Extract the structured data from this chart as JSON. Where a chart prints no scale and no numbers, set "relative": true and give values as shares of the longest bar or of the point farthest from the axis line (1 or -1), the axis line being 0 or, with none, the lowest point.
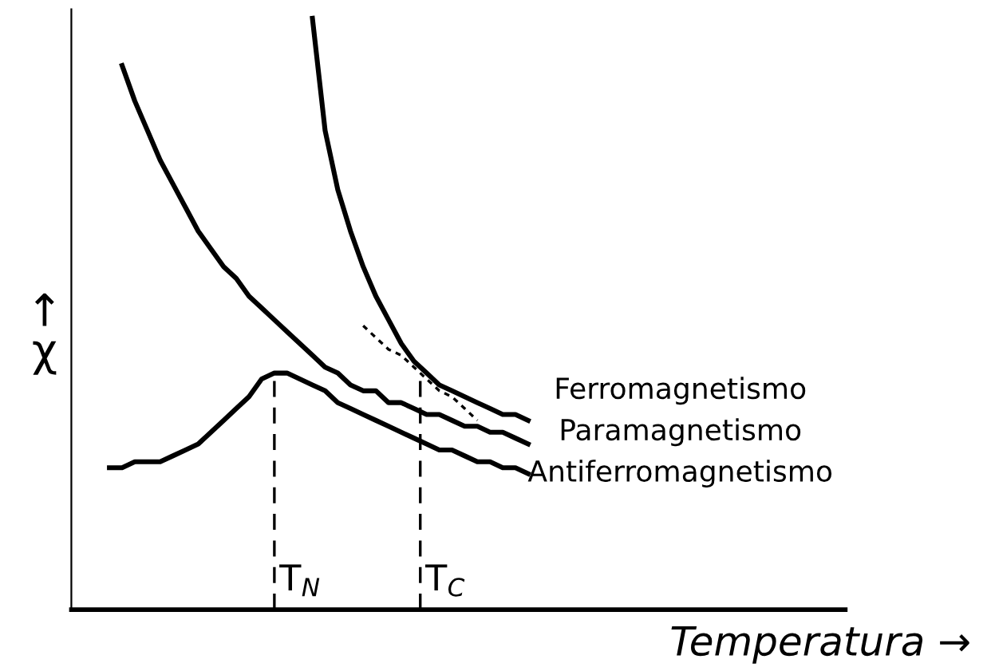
{
  "chart_data": {
    "type": "line",
    "relative": true,
    "xlabel": "Temperatura →",
    "ylabel": "↑\nχ",
    "legend": false,
    "marker": "none",
    "line_style": "solid",
    "categories": [
      null,
      null,
      null,
      null,
      null,
      null,
      null,
      null,
      null,
      null,
      null,
      null,
      null,
      null,
      null,
      null,
      null,
      null,
      null,
      null,
      null,
      null,
      null,
      null,
      null,
      null,
      null,
      null,
      null,
      null,
      null,
      null,
      null,
      null
    ],
    "series": [
      {
        "name": "Ferromagnetismo",
        "color": "#000000",
        "values": [
          null,
          null,
          null,
          null,
          null,
          null,
          null,
          null,
          null,
          null,
          null,
          null,
          null,
          null,
          null,
          null,
          1.0,
          0.81,
          0.71,
          0.64,
          0.58,
          0.53,
          0.49,
          0.45,
          0.42,
          0.4,
          0.38,
          0.37,
          0.36,
          0.35,
          0.34,
          0.33,
          0.33,
          0.32
        ]
      },
      {
        "name": "Paramagnetismo",
        "color": "#000000",
        "values": [
          null,
          0.92,
          0.86,
          0.81,
          0.76,
          0.72,
          0.68,
          0.64,
          0.61,
          0.58,
          0.56,
          0.53,
          0.51,
          0.49,
          0.47,
          0.45,
          0.43,
          0.41,
          0.4,
          0.38,
          0.37,
          0.37,
          0.35,
          0.35,
          0.34,
          0.33,
          0.33,
          0.32,
          0.31,
          0.31,
          0.3,
          0.3,
          0.29,
          0.28
        ]
      },
      {
        "name": "Antiferromagnetismo",
        "color": "#000000",
        "values": [
          0.24,
          0.24,
          0.25,
          0.25,
          0.25,
          0.26,
          0.27,
          0.28,
          0.3,
          0.32,
          0.34,
          0.36,
          0.39,
          0.4,
          0.4,
          0.39,
          0.38,
          0.37,
          0.35,
          0.34,
          0.33,
          0.32,
          0.31,
          0.3,
          0.29,
          0.28,
          0.27,
          0.27,
          0.26,
          0.25,
          0.25,
          0.24,
          0.24,
          0.23
        ]
      },
      {
        "color": "#000000",
        "line_style": "dotted",
        "values": [
          null,
          null,
          null,
          null,
          null,
          null,
          null,
          null,
          null,
          null,
          null,
          null,
          null,
          null,
          null,
          null,
          null,
          null,
          null,
          null,
          0.48,
          0.46,
          0.44,
          0.43,
          0.41,
          0.39,
          0.37,
          0.36,
          0.34,
          0.32,
          null,
          null,
          null,
          null
        ]
      }
    ],
    "annotations": [
      "T$_{N}$",
      "T$_{C}$"
    ]
  }
}
